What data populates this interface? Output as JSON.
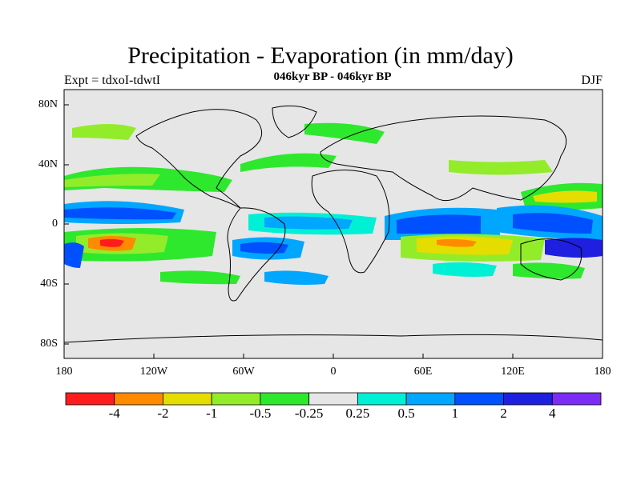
{
  "title": "Precipitation - Evaporation (in mm/day)",
  "subtitle": "046kyr BP - 046kyr BP",
  "left_label": "Expt = tdxoI-tdwtI",
  "right_label": "DJF",
  "y_ticks": [
    "80N",
    "40N",
    "0",
    "40S",
    "80S"
  ],
  "x_ticks": [
    "180",
    "120W",
    "60W",
    "0",
    "60E",
    "120E",
    "180"
  ],
  "colorbar": {
    "colors": [
      "#ff1c1c",
      "#ff8a00",
      "#e6dd00",
      "#93ec2a",
      "#2ee82e",
      "#e6e6e6",
      "#00f0d6",
      "#00a6ff",
      "#0050ff",
      "#1f1fe0",
      "#7b2cf5"
    ],
    "labels": [
      "-4",
      "-2",
      "-1",
      "-0.5",
      "-0.25",
      "0.25",
      "0.5",
      "1",
      "2",
      "4"
    ]
  },
  "map_background": "#e6e6e6"
}
